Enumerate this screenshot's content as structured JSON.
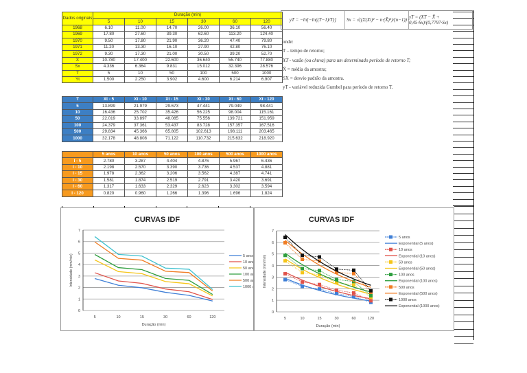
{
  "table1": {
    "corner": "Dados originais",
    "group_header": "Duração (min)",
    "durations": [
      "5",
      "10",
      "15",
      "30",
      "60",
      "120"
    ],
    "rows": [
      {
        "label": "1968",
        "values": [
          "6.10",
          "11.00",
          "14.70",
          "26.00",
          "36.10",
          "56.40"
        ]
      },
      {
        "label": "1969",
        "values": [
          "17.80",
          "27.60",
          "39.30",
          "62.60",
          "113.20",
          "124.40"
        ]
      },
      {
        "label": "1970",
        "values": [
          "9.50",
          "17.80",
          "21.90",
          "36.20",
          "47.40",
          "79.80"
        ]
      },
      {
        "label": "1971",
        "values": [
          "11.20",
          "13.30",
          "16.10",
          "27.90",
          "42.80",
          "76.10"
        ]
      },
      {
        "label": "1972",
        "values": [
          "9.30",
          "17.30",
          "21.00",
          "30.50",
          "39.20",
          "52.70"
        ]
      },
      {
        "label": "X",
        "values": [
          "10.780",
          "17.400",
          "22.600",
          "36.640",
          "55.740",
          "77.880"
        ]
      },
      {
        "label": "Sx",
        "values": [
          "4.336",
          "6.364",
          "9.831",
          "15.012",
          "32.396",
          "28.576"
        ]
      },
      {
        "label": "T",
        "values": [
          "5",
          "10",
          "50",
          "100",
          "500",
          "1000"
        ]
      },
      {
        "label": "Yt",
        "values": [
          "1.500",
          "2.250",
          "3.902",
          "4.600",
          "6.214",
          "6.907"
        ]
      }
    ]
  },
  "table2": {
    "header": [
      "T",
      "Xt - 5",
      "Xt - 10",
      "Xt - 15",
      "Xt - 30",
      "Xt - 60",
      "Xt - 120"
    ],
    "rows": [
      {
        "label": "5",
        "values": [
          "13.899",
          "21.979",
          "29.673",
          "47.441",
          "79.049",
          "98.441"
        ]
      },
      {
        "label": "10",
        "values": [
          "16.436",
          "25.702",
          "35.426",
          "56.225",
          "98.004",
          "115.161"
        ]
      },
      {
        "label": "50",
        "values": [
          "22.019",
          "33.897",
          "48.085",
          "75.556",
          "139.721",
          "151.959"
        ]
      },
      {
        "label": "100",
        "values": [
          "24.379",
          "37.361",
          "53.437",
          "83.728",
          "157.357",
          "167.516"
        ]
      },
      {
        "label": "500",
        "values": [
          "29.834",
          "45.366",
          "65.805",
          "102.613",
          "198.111",
          "203.465"
        ]
      },
      {
        "label": "1000",
        "values": [
          "32.178",
          "48.808",
          "71.122",
          "110.732",
          "215.632",
          "218.920"
        ]
      }
    ]
  },
  "table3": {
    "header": [
      "",
      "5 anos",
      "10 anos",
      "50 anos",
      "100 anos",
      "500 anos",
      "1000 anos"
    ],
    "rows": [
      {
        "label": "I - 5",
        "values": [
          "2.780",
          "3.287",
          "4.404",
          "4.876",
          "5.967",
          "6.436"
        ]
      },
      {
        "label": "I - 10",
        "values": [
          "2.198",
          "2.570",
          "3.390",
          "3.736",
          "4.537",
          "4.881"
        ]
      },
      {
        "label": "I - 15",
        "values": [
          "1.978",
          "2.362",
          "3.206",
          "3.562",
          "4.387",
          "4.741"
        ]
      },
      {
        "label": "I - 30",
        "values": [
          "1.581",
          "1.874",
          "2.519",
          "2.791",
          "3.420",
          "3.691"
        ]
      },
      {
        "label": "I - 60",
        "values": [
          "1.317",
          "1.633",
          "2.329",
          "2.623",
          "3.302",
          "3.594"
        ]
      },
      {
        "label": "I - 120",
        "values": [
          "0.820",
          "0.960",
          "1.266",
          "1.396",
          "1.696",
          "1.824"
        ]
      }
    ]
  },
  "formulas": [
    "yT = −ln[−ln((T−1)/T)]",
    "Sx = √((Σ(Xi)² − n·(X̄)²)/(n−1))",
    "yT = (XT − X̄ + 0,45·Sx)/(0,7797·Sx)"
  ],
  "notes": [
    "onde:",
    "T – tempo de retorno;",
    "XT - vazão (ou chuva) para um determinado período de retorno T;",
    "X̄ = média da amostra;",
    "SX = desvio padrão da amostra.",
    "yT - variável reduzida Gumbel para período de retorno T."
  ],
  "chart_data": [
    {
      "type": "line",
      "title": "CURVAS IDF",
      "xlabel": "Duração (min)",
      "ylabel": "Intensidade (mm/min)",
      "ylim": [
        0,
        7
      ],
      "yticks": [
        "0",
        "1",
        "2",
        "3",
        "4",
        "5",
        "6",
        "7"
      ],
      "categories": [
        "5",
        "10",
        "15",
        "30",
        "60",
        "120"
      ],
      "legend": "right",
      "grid": true,
      "series": [
        {
          "name": "5 anos",
          "color": "#3f7fd6",
          "values": [
            2.78,
            2.198,
            1.978,
            1.581,
            1.317,
            0.82
          ]
        },
        {
          "name": "10 anos",
          "color": "#e0524a",
          "values": [
            3.287,
            2.57,
            2.362,
            1.874,
            1.633,
            0.96
          ]
        },
        {
          "name": "50 anos",
          "color": "#f5c518",
          "values": [
            4.404,
            3.39,
            3.206,
            2.519,
            2.329,
            1.266
          ]
        },
        {
          "name": "100 anos",
          "color": "#2e9e3e",
          "values": [
            4.876,
            3.736,
            3.562,
            2.791,
            2.623,
            1.396
          ]
        },
        {
          "name": "500 anos",
          "color": "#f07c22",
          "values": [
            5.967,
            4.537,
            4.387,
            3.42,
            3.302,
            1.696
          ]
        },
        {
          "name": "1000 anos",
          "color": "#3fc1cf",
          "values": [
            6.436,
            4.881,
            4.741,
            3.691,
            3.594,
            1.824
          ]
        }
      ]
    },
    {
      "type": "line",
      "title": "CURVAS IDF",
      "xlabel": "Duração (min)",
      "ylabel": "Intensidade (mm/min)",
      "ylim": [
        0,
        7
      ],
      "yticks": [
        "0",
        "1",
        "2",
        "3",
        "4",
        "5",
        "6",
        "7"
      ],
      "categories": [
        "5",
        "10",
        "15",
        "30",
        "60",
        "120"
      ],
      "legend": "right",
      "grid": true,
      "trendline": "exponential",
      "series": [
        {
          "name": "5 anos",
          "trend_name": "Exponential (5 anos)",
          "color": "#3f7fd6",
          "values": [
            2.78,
            2.198,
            1.978,
            1.581,
            1.317,
            0.82
          ]
        },
        {
          "name": "10 anos",
          "trend_name": "Exponential (10 anos)",
          "color": "#e0524a",
          "values": [
            3.287,
            2.57,
            2.362,
            1.874,
            1.633,
            0.96
          ]
        },
        {
          "name": "50 anos",
          "trend_name": "Exponential (50 anos)",
          "color": "#f5c518",
          "values": [
            4.404,
            3.39,
            3.206,
            2.519,
            2.329,
            1.266
          ]
        },
        {
          "name": "100 anos",
          "trend_name": "Exponential (100 anos)",
          "color": "#2e9e3e",
          "values": [
            4.876,
            3.736,
            3.562,
            2.791,
            2.623,
            1.396
          ]
        },
        {
          "name": "500 anos",
          "trend_name": "Exponential (500 anos)",
          "color": "#f07c22",
          "values": [
            5.967,
            4.537,
            4.387,
            3.42,
            3.302,
            1.696
          ]
        },
        {
          "name": "1000 anos",
          "trend_name": "Exponential (1000 anos)",
          "color": "#111111",
          "values": [
            6.436,
            4.881,
            4.741,
            3.691,
            3.594,
            1.824
          ]
        }
      ]
    }
  ]
}
